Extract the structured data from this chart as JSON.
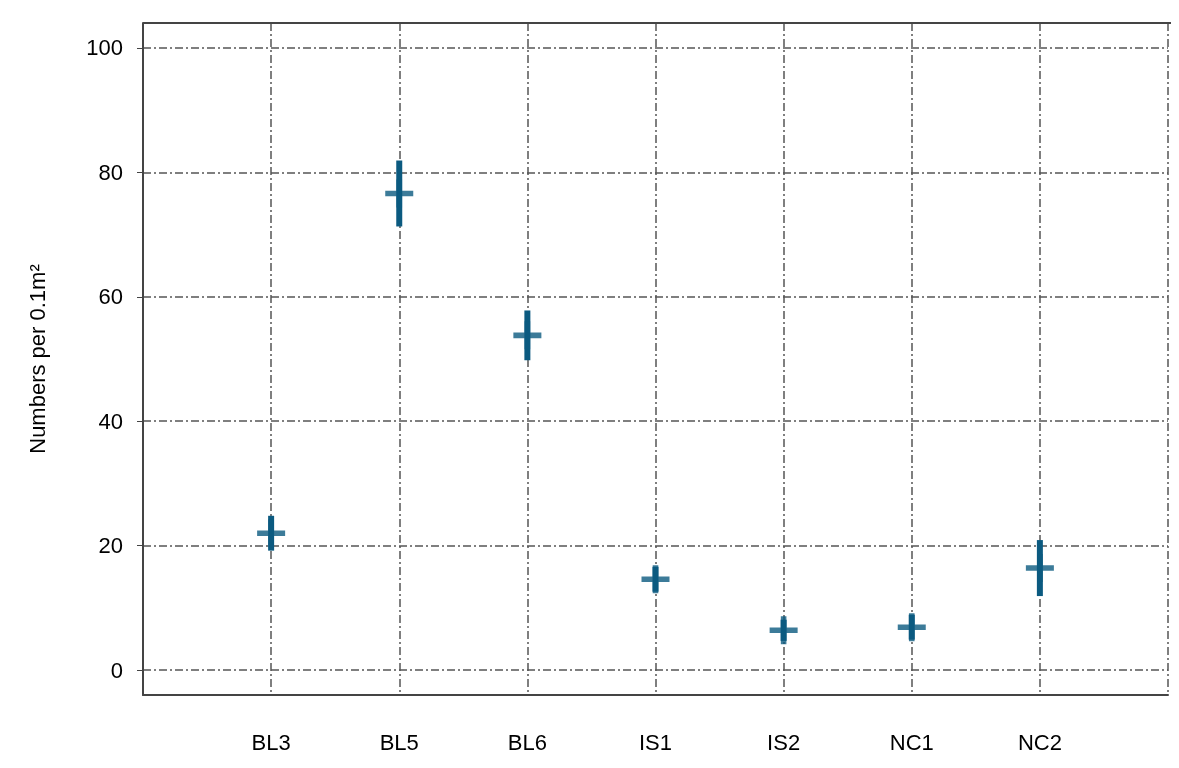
{
  "chart_data": {
    "type": "scatter",
    "ylabel": "Numbers per 0.1m²",
    "categories": [
      null,
      "BL3",
      "BL5",
      "BL6",
      "IS1",
      "IS2",
      "NC1",
      "NC2",
      null
    ],
    "series": [
      {
        "color": "#0b5a80",
        "values": [
          null,
          22,
          76.6,
          53.8,
          14.6,
          6.4,
          6.9,
          16.4,
          null
        ],
        "errors": [
          null,
          2.8,
          5.3,
          4,
          2,
          1.7,
          2,
          4.5,
          null
        ]
      }
    ],
    "ylim": [
      -4,
      104
    ],
    "yticks": [
      0,
      20,
      40,
      60,
      80,
      100
    ],
    "grid": true,
    "marker": "cross"
  }
}
